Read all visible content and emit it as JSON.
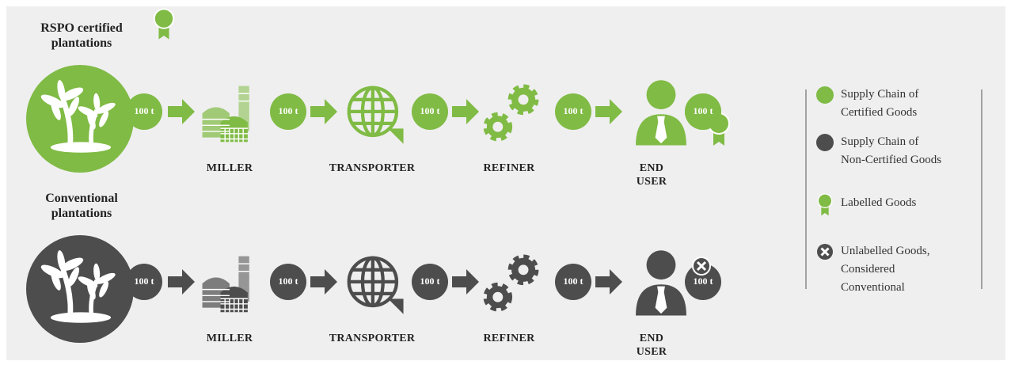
{
  "rows": [
    {
      "title": "RSPO certified plantations",
      "quantities": [
        "100 t",
        "100 t",
        "100 t",
        "100 t",
        "100 t"
      ],
      "stages": [
        "MILLER",
        "TRANSPORTER",
        "REFINER",
        "END USER"
      ]
    },
    {
      "title": "Conventional plantations",
      "quantities": [
        "100 t",
        "100 t",
        "100 t",
        "100 t",
        "100 t"
      ],
      "stages": [
        "MILLER",
        "TRANSPORTER",
        "REFINER",
        "END USER"
      ]
    }
  ],
  "legend": [
    "Supply Chain of Certified Goods",
    "Supply Chain of Non-Certified Goods",
    "Labelled Goods",
    "Unlabelled Goods, Considered Conventional"
  ]
}
